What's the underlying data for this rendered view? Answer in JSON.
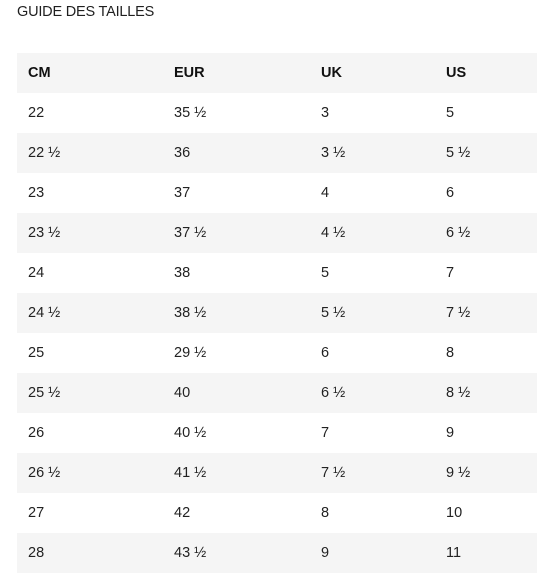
{
  "page": {
    "title": "GUIDE DES TAILLES"
  },
  "colors": {
    "shaded_row": "#f5f5f5",
    "text": "#222222"
  },
  "table": {
    "headers": [
      "CM",
      "EUR",
      "UK",
      "US"
    ],
    "rows": [
      [
        "22",
        "35 ½",
        "3",
        "5"
      ],
      [
        "22 ½",
        "36",
        "3 ½",
        "5 ½"
      ],
      [
        "23",
        "37",
        "4",
        "6"
      ],
      [
        "23 ½",
        "37 ½",
        "4 ½",
        "6 ½"
      ],
      [
        "24",
        "38",
        "5",
        "7"
      ],
      [
        "24 ½",
        "38 ½",
        "5 ½",
        "7 ½"
      ],
      [
        "25",
        "29 ½",
        "6",
        "8"
      ],
      [
        "25 ½",
        "40",
        "6 ½",
        "8 ½"
      ],
      [
        "26",
        "40 ½",
        "7",
        "9"
      ],
      [
        "26 ½",
        "41 ½",
        "7 ½",
        "9 ½"
      ],
      [
        "27",
        "42",
        "8",
        "10"
      ],
      [
        "28",
        "43 ½",
        "9",
        "11"
      ]
    ]
  }
}
